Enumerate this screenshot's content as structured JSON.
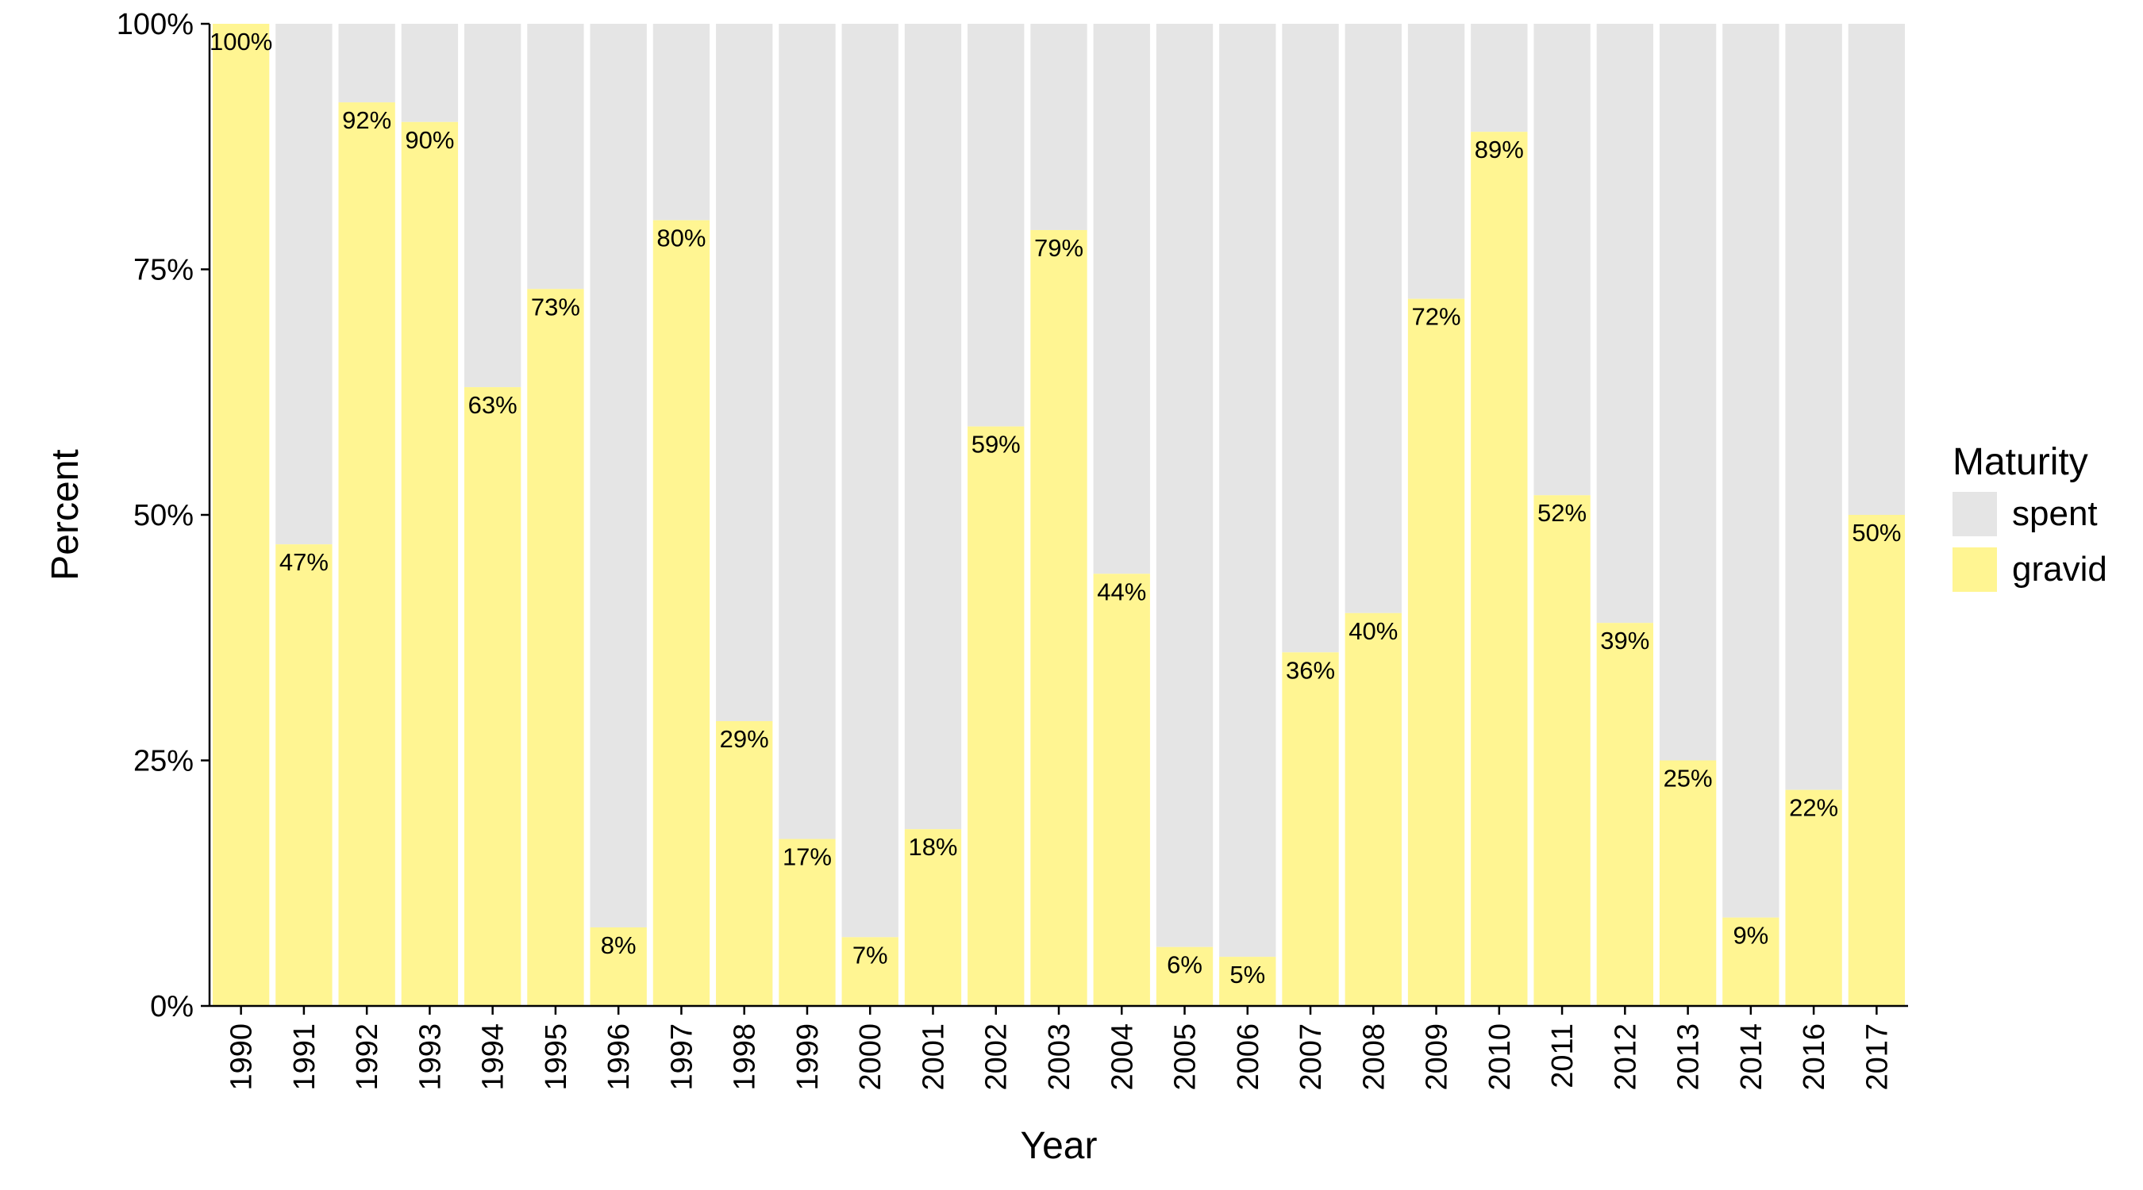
{
  "chart_data": {
    "type": "bar",
    "stacked": true,
    "percent_scale": true,
    "xlabel": "Year",
    "ylabel": "Percent",
    "ylim": [
      0,
      100
    ],
    "y_ticks": [
      "0%",
      "25%",
      "50%",
      "75%",
      "100%"
    ],
    "grid": false,
    "categories": [
      "1990",
      "1991",
      "1992",
      "1993",
      "1994",
      "1995",
      "1996",
      "1997",
      "1998",
      "1999",
      "2000",
      "2001",
      "2002",
      "2003",
      "2004",
      "2005",
      "2006",
      "2007",
      "2008",
      "2009",
      "2010",
      "2011",
      "2012",
      "2013",
      "2014",
      "2016",
      "2017"
    ],
    "series": [
      {
        "name": "gravid",
        "color": "#fff592",
        "values": [
          100,
          47,
          92,
          90,
          63,
          73,
          8,
          80,
          29,
          17,
          7,
          18,
          59,
          79,
          44,
          6,
          5,
          36,
          40,
          72,
          89,
          52,
          39,
          25,
          9,
          22,
          50
        ]
      },
      {
        "name": "spent",
        "color": "#e5e5e5",
        "values": [
          0,
          53,
          8,
          10,
          37,
          27,
          92,
          20,
          71,
          83,
          93,
          82,
          41,
          21,
          56,
          94,
          95,
          64,
          60,
          28,
          11,
          48,
          61,
          75,
          91,
          78,
          50
        ]
      }
    ],
    "data_labels": [
      "100%",
      "47%",
      "92%",
      "90%",
      "63%",
      "73%",
      "8%",
      "80%",
      "29%",
      "17%",
      "7%",
      "18%",
      "59%",
      "79%",
      "44%",
      "6%",
      "5%",
      "36%",
      "40%",
      "72%",
      "89%",
      "52%",
      "39%",
      "25%",
      "9%",
      "22%",
      "50%"
    ],
    "legend": {
      "title": "Maturity",
      "position": "right",
      "entries": [
        {
          "label": "spent",
          "color": "#e5e5e5"
        },
        {
          "label": "gravid",
          "color": "#fff592"
        }
      ]
    }
  }
}
